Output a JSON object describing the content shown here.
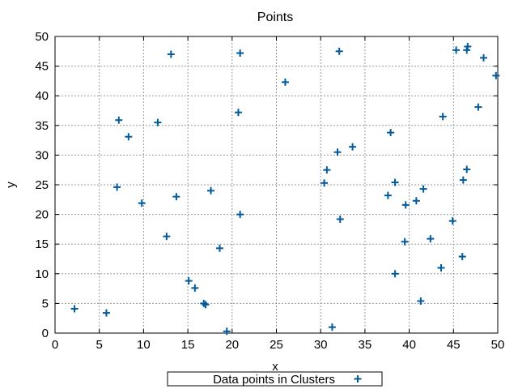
{
  "chart_data": {
    "type": "scatter",
    "title": "Points",
    "xlabel": "x",
    "ylabel": "y",
    "xlim": [
      0,
      50
    ],
    "ylim": [
      0,
      50
    ],
    "xticks": [
      "0",
      "5",
      "10",
      "15",
      "20",
      "25",
      "30",
      "35",
      "40",
      "45",
      "50"
    ],
    "yticks": [
      "0",
      "5",
      "10",
      "15",
      "20",
      "25",
      "30",
      "35",
      "40",
      "45",
      "50"
    ],
    "grid": true,
    "legend_position": "bottom-center",
    "series": [
      {
        "name": "Data points in Clusters",
        "color": "#005a9c",
        "marker": "plus",
        "points": [
          [
            2.2,
            4.1
          ],
          [
            5.8,
            3.4
          ],
          [
            7.0,
            24.6
          ],
          [
            7.2,
            35.9
          ],
          [
            8.3,
            33.1
          ],
          [
            9.8,
            21.9
          ],
          [
            11.6,
            35.5
          ],
          [
            12.6,
            16.3
          ],
          [
            13.1,
            47.0
          ],
          [
            13.7,
            23.0
          ],
          [
            15.1,
            8.8
          ],
          [
            15.8,
            7.6
          ],
          [
            16.8,
            5.0
          ],
          [
            17.0,
            4.8
          ],
          [
            17.6,
            24.0
          ],
          [
            18.6,
            14.3
          ],
          [
            19.4,
            0.3
          ],
          [
            20.7,
            37.2
          ],
          [
            20.9,
            20.0
          ],
          [
            20.9,
            47.2
          ],
          [
            26.0,
            42.3
          ],
          [
            30.4,
            25.3
          ],
          [
            30.7,
            27.5
          ],
          [
            31.3,
            1.0
          ],
          [
            31.9,
            30.5
          ],
          [
            32.1,
            47.5
          ],
          [
            32.2,
            19.2
          ],
          [
            33.6,
            31.4
          ],
          [
            37.6,
            23.2
          ],
          [
            37.9,
            33.8
          ],
          [
            38.4,
            10.0
          ],
          [
            38.4,
            25.4
          ],
          [
            39.5,
            15.4
          ],
          [
            39.6,
            21.6
          ],
          [
            40.8,
            22.3
          ],
          [
            41.3,
            5.4
          ],
          [
            41.6,
            24.3
          ],
          [
            42.4,
            15.9
          ],
          [
            43.6,
            11.0
          ],
          [
            43.8,
            36.5
          ],
          [
            44.9,
            18.9
          ],
          [
            45.3,
            47.7
          ],
          [
            46.0,
            12.9
          ],
          [
            46.1,
            25.8
          ],
          [
            46.5,
            27.6
          ],
          [
            46.5,
            47.7
          ],
          [
            46.6,
            48.3
          ],
          [
            47.8,
            38.1
          ],
          [
            48.4,
            46.4
          ],
          [
            49.8,
            43.4
          ]
        ]
      }
    ]
  }
}
